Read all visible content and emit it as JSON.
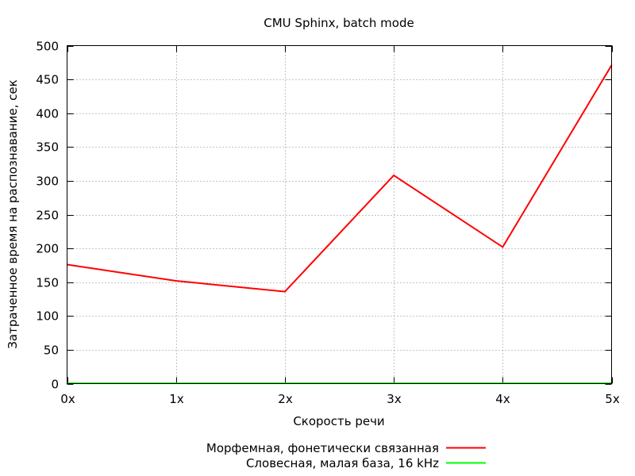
{
  "chart_data": {
    "type": "line",
    "title": "CMU Sphinx, batch mode",
    "xlabel": "Скорость речи",
    "ylabel": "Затраченное время на распознавание, сек",
    "categories": [
      "0x",
      "1x",
      "2x",
      "3x",
      "4x",
      "5x"
    ],
    "x": [
      0,
      1,
      2,
      3,
      4,
      5
    ],
    "xlim": [
      0,
      5
    ],
    "ylim": [
      0,
      500
    ],
    "yticks": [
      0,
      50,
      100,
      150,
      200,
      250,
      300,
      350,
      400,
      450,
      500
    ],
    "grid": true,
    "legend_position": "bottom-center",
    "series": [
      {
        "name": "Морфемная, фонетически связанная",
        "color": "#ff0000",
        "values": [
          176,
          152,
          136,
          308,
          202,
          471
        ]
      },
      {
        "name": "Словесная, малая база, 16 kHz",
        "color": "#00ff00",
        "values": [
          0.5,
          0.5,
          0.5,
          0.5,
          0.5,
          0.5
        ]
      }
    ]
  }
}
